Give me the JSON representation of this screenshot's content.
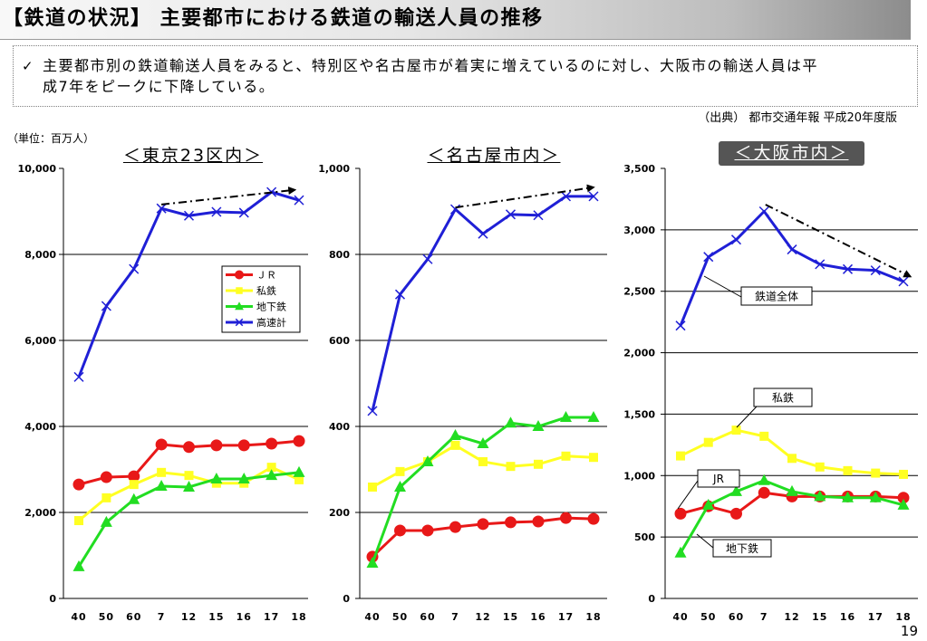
{
  "header": {
    "title": "【鉄道の状況】 主要都市における鉄道の輸送人員の推移"
  },
  "summary": {
    "bullet": "✓",
    "lines": [
      "主要都市別の鉄道輸送人員をみると、特別区や名古屋市が着実に増えているのに対し、大阪市の輸送人員は平",
      "成7年をピークに下降している。"
    ]
  },
  "source": "（出典） 都市交通年報 平成20年度版",
  "unit": "（単位：百万人）",
  "page_number": "19",
  "chart_data": [
    {
      "type": "line",
      "title": "＜東京23区内＞",
      "categories": [
        "40",
        "50",
        "60",
        "7",
        "12",
        "15",
        "16",
        "17",
        "18"
      ],
      "ylim": [
        0,
        10000
      ],
      "y_ticks": [
        "0",
        "2,000",
        "4,000",
        "6,000",
        "8,000",
        "10,000"
      ],
      "grid": true,
      "legend": "right",
      "series": [
        {
          "name": "ＪＲ",
          "color": "#e81818",
          "marker": "circle",
          "values": [
            2650,
            2820,
            2840,
            3580,
            3520,
            3560,
            3560,
            3600,
            3660
          ]
        },
        {
          "name": "私鉄",
          "color": "#ffff22",
          "marker": "square",
          "values": [
            1810,
            2340,
            2650,
            2930,
            2860,
            2680,
            2680,
            3050,
            2760
          ]
        },
        {
          "name": "地下鉄",
          "color": "#22dd22",
          "marker": "triangle",
          "values": [
            740,
            1770,
            2300,
            2610,
            2590,
            2780,
            2780,
            2860,
            2930
          ]
        },
        {
          "name": "高速計",
          "color": "#1f1fd6",
          "marker": "x",
          "values": [
            5150,
            6800,
            7660,
            9070,
            8900,
            8990,
            8970,
            9450,
            9260
          ]
        }
      ],
      "trend": {
        "color": "#000000",
        "from": {
          "x": 3,
          "y": 9160
        },
        "to": {
          "x": 7.85,
          "y": 9500
        }
      }
    },
    {
      "type": "line",
      "title": "＜名古屋市内＞",
      "categories": [
        "40",
        "50",
        "60",
        "7",
        "12",
        "15",
        "16",
        "17",
        "18"
      ],
      "ylim": [
        0,
        1000
      ],
      "y_ticks": [
        "0",
        "200",
        "400",
        "600",
        "800",
        "1,000"
      ],
      "grid": true,
      "legend": "none",
      "series": [
        {
          "color": "#ffff22",
          "marker": "square",
          "values": [
            259,
            295,
            318,
            356,
            318,
            307,
            312,
            331,
            328
          ]
        },
        {
          "color": "#e81818",
          "marker": "circle",
          "values": [
            97,
            158,
            158,
            166,
            173,
            177,
            179,
            187,
            185
          ]
        },
        {
          "color": "#22dd22",
          "marker": "triangle",
          "values": [
            82,
            259,
            318,
            379,
            360,
            408,
            400,
            421,
            421
          ]
        },
        {
          "color": "#1f1fd6",
          "marker": "x",
          "values": [
            436,
            707,
            789,
            905,
            848,
            893,
            891,
            935,
            935
          ]
        }
      ],
      "trend": {
        "color": "#000000",
        "from": {
          "x": 3,
          "y": 909
        },
        "to": {
          "x": 8,
          "y": 956
        }
      }
    },
    {
      "type": "line",
      "title": "＜大阪市内＞",
      "categories": [
        "40",
        "50",
        "60",
        "7",
        "12",
        "15",
        "16",
        "17",
        "18"
      ],
      "ylim": [
        0,
        3500
      ],
      "y_ticks": [
        "0",
        "500",
        "1,000",
        "1,500",
        "2,000",
        "2,500",
        "3,000",
        "3,500"
      ],
      "grid": true,
      "legend": "callouts",
      "series": [
        {
          "name": "鉄道全体",
          "color": "#1f1fd6",
          "marker": "x",
          "values": [
            2220,
            2780,
            2920,
            3150,
            2840,
            2720,
            2680,
            2670,
            2580
          ]
        },
        {
          "name": "私鉄",
          "color": "#ffff22",
          "marker": "square",
          "values": [
            1160,
            1270,
            1370,
            1320,
            1140,
            1070,
            1040,
            1020,
            1010
          ]
        },
        {
          "name": "JR",
          "color": "#e81818",
          "marker": "circle",
          "values": [
            690,
            750,
            690,
            860,
            830,
            830,
            830,
            830,
            820
          ]
        },
        {
          "name": "地下鉄",
          "color": "#22dd22",
          "marker": "triangle",
          "values": [
            370,
            760,
            870,
            960,
            870,
            830,
            820,
            820,
            760
          ]
        }
      ],
      "trend": {
        "color": "#000000",
        "from": {
          "x": 3.05,
          "y": 3205
        },
        "to": {
          "x": 8.25,
          "y": 2620
        }
      }
    }
  ]
}
